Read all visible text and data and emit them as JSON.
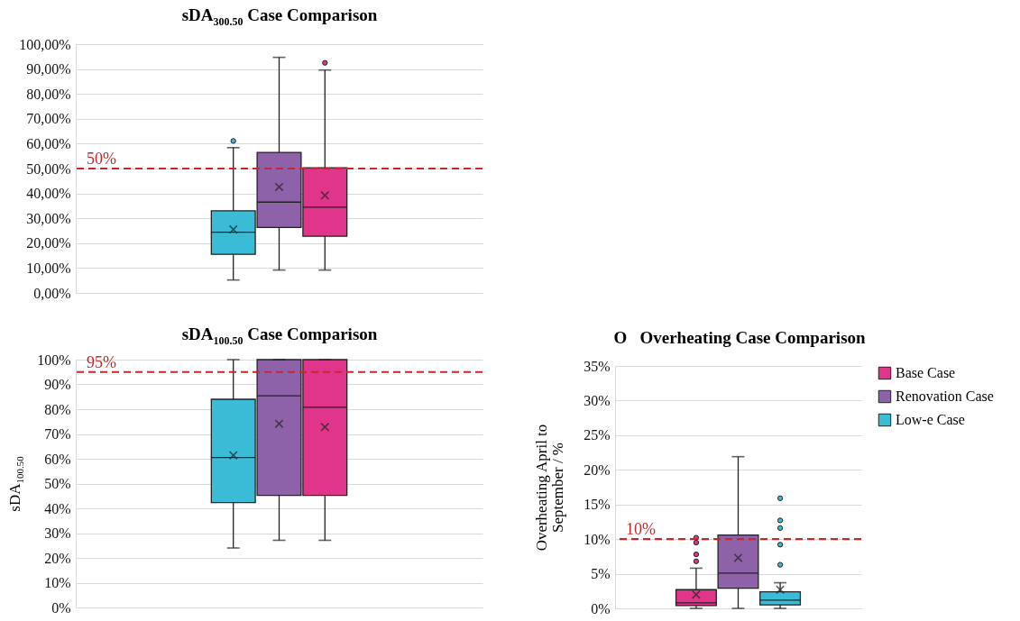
{
  "chart_data": [
    {
      "type": "box",
      "title": "sDA$_{300.50}$ Case Comparison",
      "categories": [
        null
      ],
      "ylim": [
        0,
        100
      ],
      "yticks": [
        {
          "value": 0,
          "label": "0,00%"
        },
        {
          "value": 10,
          "label": "10,00%"
        },
        {
          "value": 20,
          "label": "20,00%"
        },
        {
          "value": 30,
          "label": "30,00%"
        },
        {
          "value": 40,
          "label": "40,00%"
        },
        {
          "value": 50,
          "label": "50,00%"
        },
        {
          "value": 60,
          "label": "60,00%"
        },
        {
          "value": 70,
          "label": "70,00%"
        },
        {
          "value": 80,
          "label": "80,00%"
        },
        {
          "value": 90,
          "label": "90,00%"
        },
        {
          "value": 100,
          "label": "100,00%"
        }
      ],
      "grid": "y",
      "tick_labels": "y",
      "series": [
        {
          "color": "#3bbcd6",
          "boxes": [
            {
              "low": 5.2,
              "q1": 15.5,
              "median": 24.4,
              "q3": 33.0,
              "high": 58.4,
              "mean": 25.5,
              "outliers": [
                61.1
              ]
            }
          ]
        },
        {
          "color": "#8e62a8",
          "boxes": [
            {
              "low": 9.2,
              "q1": 26.3,
              "median": 36.5,
              "q3": 56.5,
              "high": 94.7,
              "mean": 42.6
            }
          ]
        },
        {
          "color": "#e0358a",
          "boxes": [
            {
              "low": 9.2,
              "q1": 22.8,
              "median": 34.5,
              "q3": 50.3,
              "high": 89.6,
              "mean": 39.2,
              "outliers": [
                92.5
              ]
            }
          ]
        }
      ],
      "ref_lines": [
        {
          "axis": "y",
          "value": 50,
          "label": "50%",
          "color": "#c62828",
          "line_style": "dashed"
        }
      ]
    },
    {
      "type": "box",
      "title": "sDA$_{100.50}$ Case Comparison",
      "ylabel": "sDA$_{100.50}$",
      "categories": [
        null
      ],
      "ylim": [
        0,
        100
      ],
      "yticks": [
        {
          "value": 0,
          "label": "0%"
        },
        {
          "value": 10,
          "label": "10%"
        },
        {
          "value": 20,
          "label": "20%"
        },
        {
          "value": 30,
          "label": "30%"
        },
        {
          "value": 40,
          "label": "40%"
        },
        {
          "value": 50,
          "label": "50%"
        },
        {
          "value": 60,
          "label": "60%"
        },
        {
          "value": 70,
          "label": "70%"
        },
        {
          "value": 80,
          "label": "80%"
        },
        {
          "value": 90,
          "label": "90%"
        },
        {
          "value": 100,
          "label": "100%"
        }
      ],
      "grid": "y",
      "tick_labels": "y",
      "series": [
        {
          "color": "#3bbcd6",
          "boxes": [
            {
              "low": 24.0,
              "q1": 42.3,
              "median": 60.5,
              "q3": 84.0,
              "high": 100,
              "mean": 61.4
            }
          ]
        },
        {
          "color": "#8e62a8",
          "boxes": [
            {
              "low": 27.1,
              "q1": 45.2,
              "median": 85.4,
              "q3": 100,
              "high": 100,
              "mean": 74.1
            }
          ]
        },
        {
          "color": "#e0358a",
          "boxes": [
            {
              "low": 27.1,
              "q1": 45.2,
              "median": 80.8,
              "q3": 100,
              "high": 100,
              "mean": 72.8
            }
          ]
        }
      ],
      "ref_lines": [
        {
          "axis": "y",
          "value": 95,
          "label": "95%",
          "color": "#c62828",
          "line_style": "dashed"
        }
      ]
    },
    {
      "type": "box",
      "title": "O   Overheating Case Comparison",
      "ylabel": "Overheating April to September / %",
      "categories": [
        null
      ],
      "ylim": [
        0,
        35
      ],
      "yticks": [
        {
          "value": 0,
          "label": "0%"
        },
        {
          "value": 5,
          "label": "5%"
        },
        {
          "value": 10,
          "label": "10%"
        },
        {
          "value": 15,
          "label": "15%"
        },
        {
          "value": 20,
          "label": "20%"
        },
        {
          "value": 25,
          "label": "25%"
        },
        {
          "value": 30,
          "label": "30%"
        },
        {
          "value": 35,
          "label": "35%"
        }
      ],
      "grid": "y",
      "tick_labels": "y",
      "legend": "top right",
      "series": [
        {
          "name": "Base Case",
          "color": "#e0358a",
          "boxes": [
            {
              "low": 0,
              "q1": 0.4,
              "median": 0.8,
              "q3": 2.7,
              "high": 5.8,
              "mean": 2.0,
              "outliers": [
                6.8,
                7.8,
                9.5,
                10.2
              ]
            }
          ]
        },
        {
          "name": "Renovation Case",
          "color": "#8e62a8",
          "boxes": [
            {
              "low": 0,
              "q1": 2.9,
              "median": 5.1,
              "q3": 10.6,
              "high": 21.9,
              "mean": 7.3
            }
          ]
        },
        {
          "name": "Low-e Case",
          "color": "#3bbcd6",
          "boxes": [
            {
              "low": 0,
              "q1": 0.5,
              "median": 1.2,
              "q3": 2.4,
              "high": 3.7,
              "mean": 2.7,
              "outliers": [
                6.3,
                9.2,
                11.6,
                12.7,
                15.9
              ]
            }
          ]
        }
      ],
      "ref_lines": [
        {
          "axis": "y",
          "value": 10,
          "label": "10%",
          "color": "#c62828",
          "line_style": "dashed"
        }
      ]
    }
  ]
}
